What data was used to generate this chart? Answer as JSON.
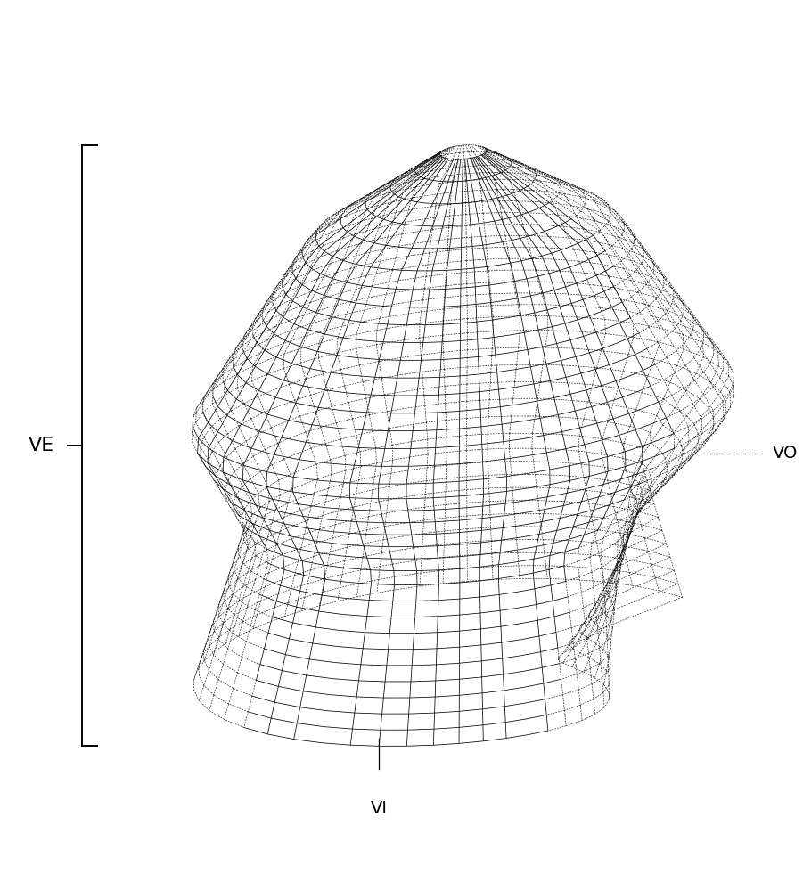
{
  "background_color": "#ffffff",
  "line_color": "#000000",
  "front_lw": 0.55,
  "back_lw": 0.42,
  "label_VE": "VE",
  "label_VI": "VI",
  "label_VO": "VO",
  "n_slices": 36,
  "n_circ": 60,
  "n_long": 52,
  "figsize": [
    9.01,
    10.0
  ],
  "dpi": 100
}
